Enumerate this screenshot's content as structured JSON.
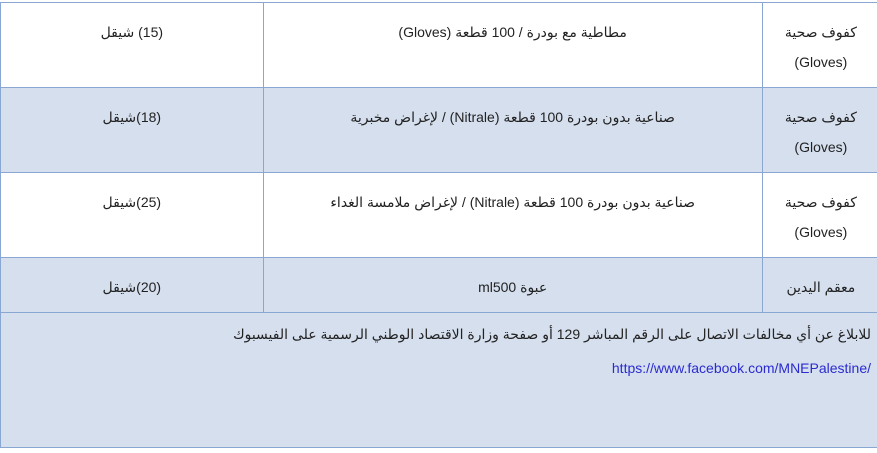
{
  "rows": [
    {
      "name": "كفوف صحية (Gloves)",
      "description": "مطاطية مع بودرة / 100 قطعة (Gloves)",
      "price": "(15) شيقل"
    },
    {
      "name": "كفوف صحية (Gloves)",
      "description": "صناعية بدون بودرة 100 قطعة (Nitrale) / لإغراض مخبرية",
      "price": "(18)شيقل"
    },
    {
      "name": "كفوف صحية (Gloves)",
      "description": "صناعية بدون بودرة 100 قطعة (Nitrale) / لإغراض ملامسة الغداء",
      "price": "(25)شيقل"
    },
    {
      "name": "معقم اليدين",
      "description": "عبوة ml500",
      "price": "(20)شيقل"
    }
  ],
  "footer": {
    "text": "للابلاغ عن أي مخالفات الاتصال على الرقم المباشر 129 أو صفحة وزارة الاقتصاد الوطني الرسمية على الفيسبوك",
    "link": "https://www.facebook.com/MNEPalestine/"
  },
  "colors": {
    "border": "#8aa6d3",
    "row_alt": "#d5dfee",
    "link": "#2b2bd0"
  }
}
